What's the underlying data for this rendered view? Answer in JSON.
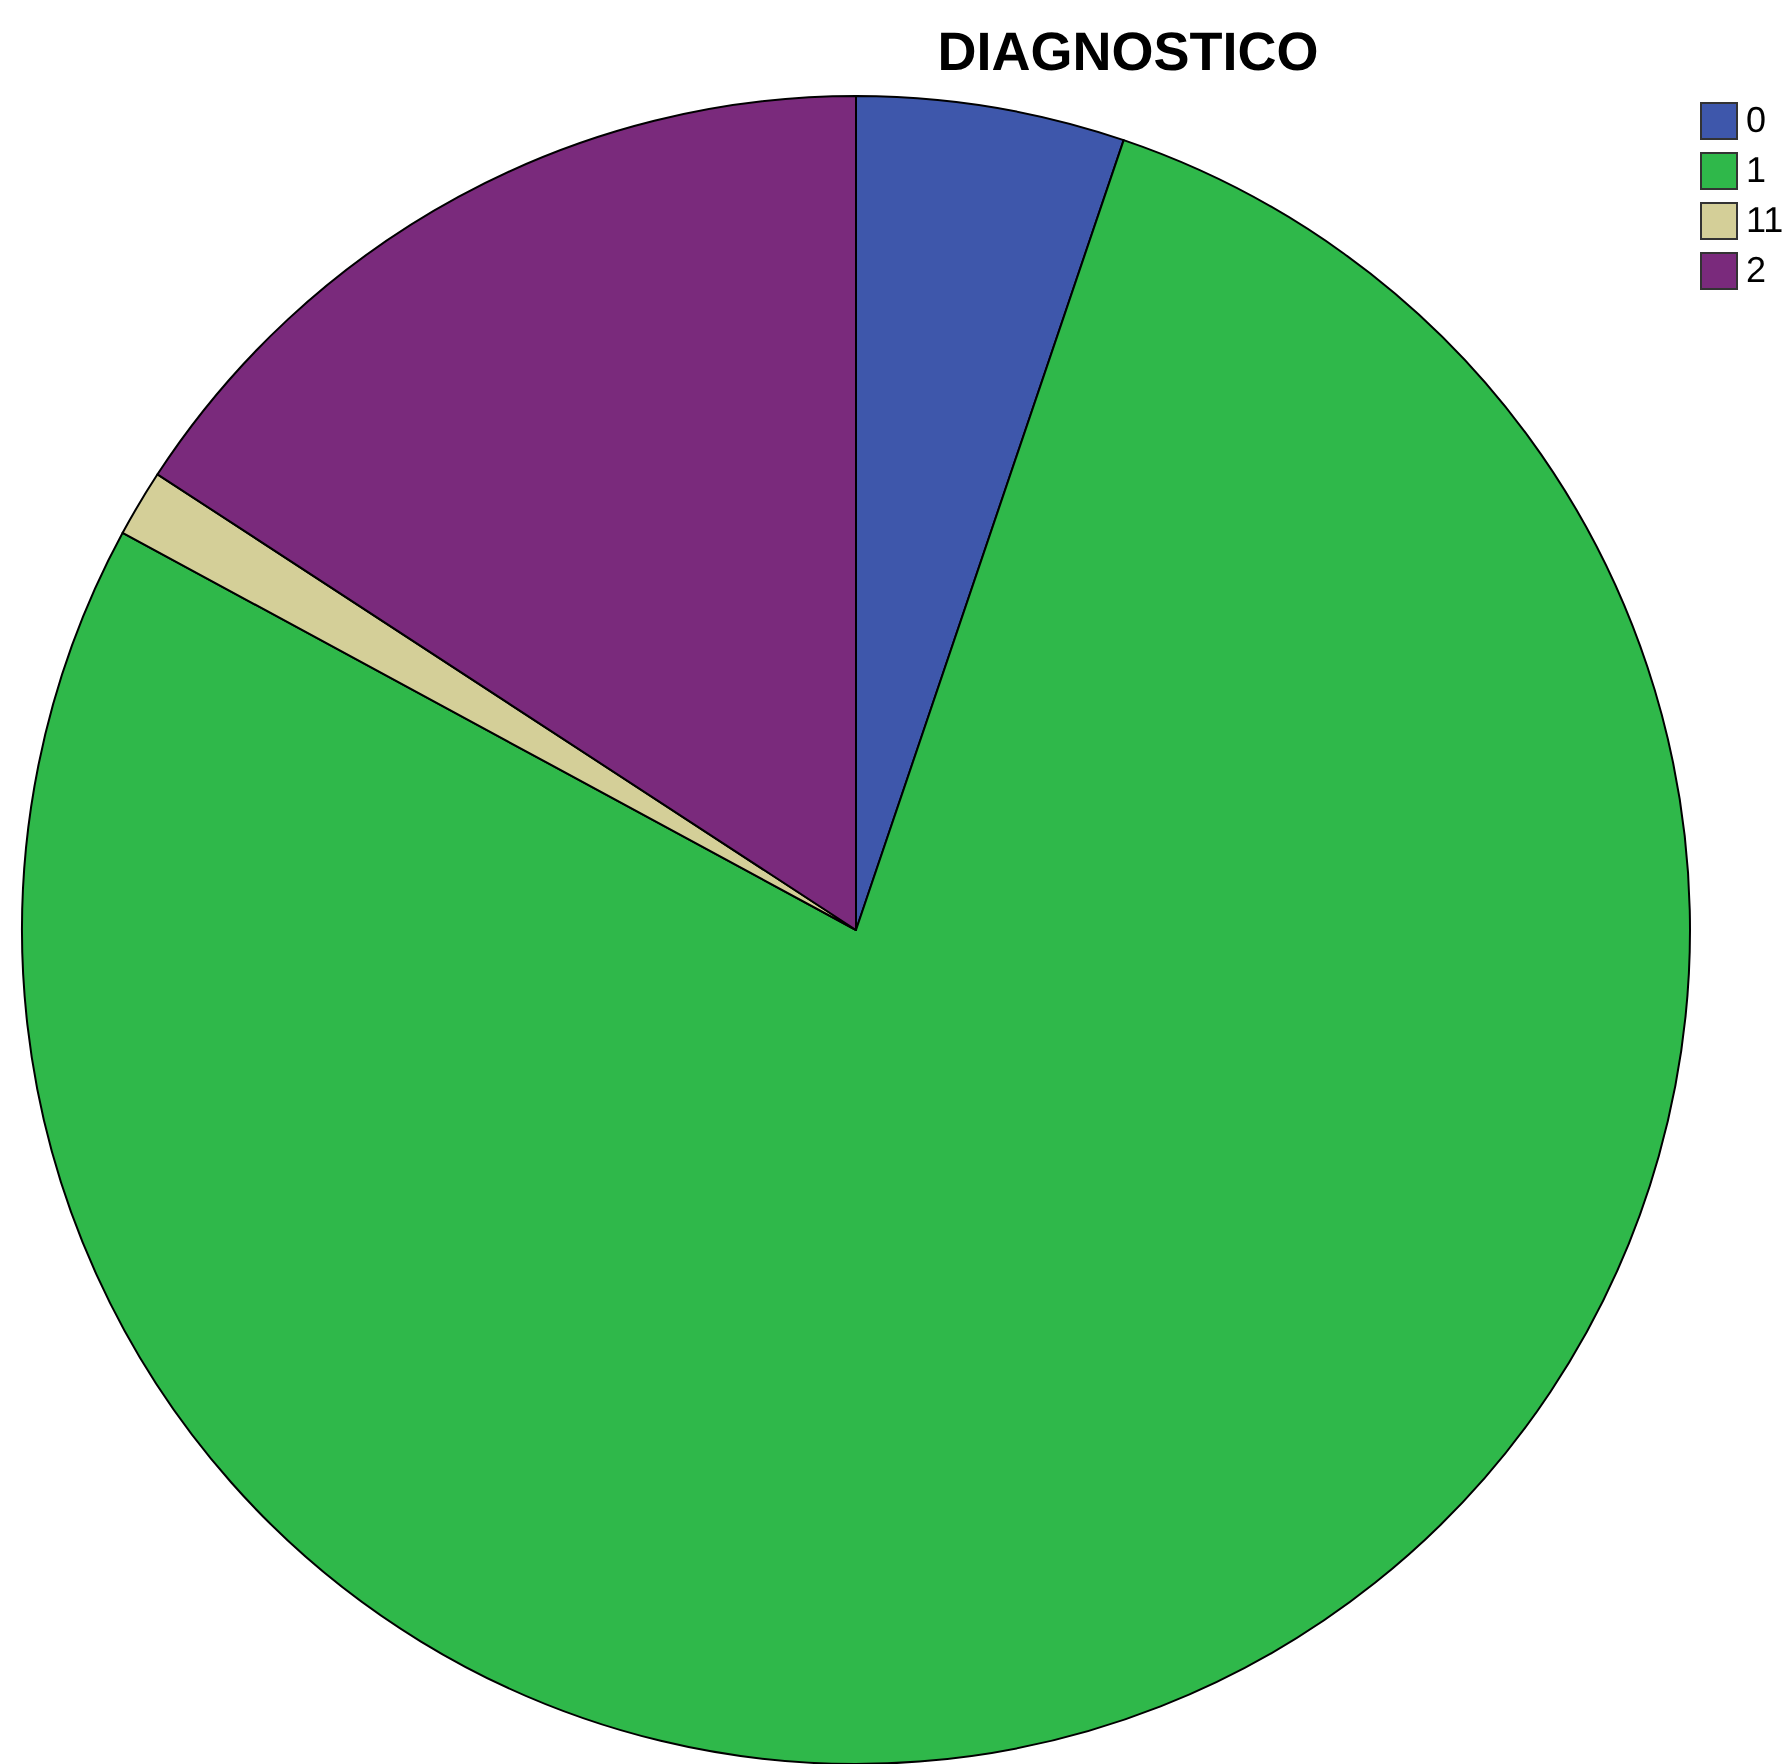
{
  "chart_data": {
    "type": "pie",
    "title": "DIAGNOSTICO",
    "categories": [
      "0",
      "1",
      "11",
      "2"
    ],
    "values": [
      5.2,
      77.7,
      1.3,
      15.8
    ],
    "colors": [
      "#3e57ab",
      "#2fb84a",
      "#d4cf98",
      "#7a2a7c"
    ],
    "legend": "top right"
  }
}
